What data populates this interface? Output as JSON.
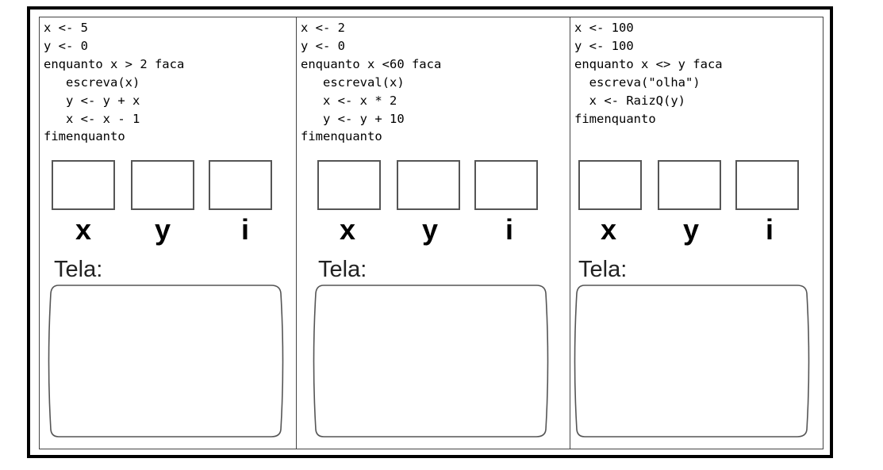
{
  "panels": [
    {
      "code": [
        "x <- 5",
        "y <- 0",
        "enquanto x > 2 faca",
        "   escreva(x)",
        "   y <- y + x",
        "   x <- x - 1",
        "fimenquanto"
      ],
      "labels": [
        "x",
        "y",
        "i"
      ],
      "output_label": "Tela:"
    },
    {
      "code": [
        "x <- 2",
        "y <- 0",
        "enquanto x <60 faca",
        "   escreval(x)",
        "   x <- x * 2",
        "   y <- y + 10",
        "fimenquanto"
      ],
      "labels": [
        "x",
        "y",
        "i"
      ],
      "output_label": "Tela:"
    },
    {
      "code": [
        "x <- 100",
        "y <- 100",
        "enquanto x <> y faca",
        "  escreva(\"olha\")",
        "  x <- RaizQ(y)",
        "fimenquanto"
      ],
      "labels": [
        "x",
        "y",
        "i"
      ],
      "output_label": "Tela:"
    }
  ]
}
